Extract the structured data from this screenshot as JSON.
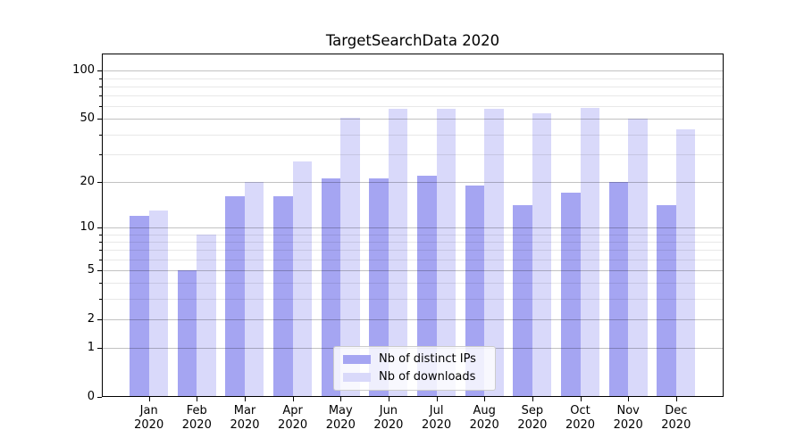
{
  "chart_data": {
    "type": "bar",
    "title": "TargetSearchData 2020",
    "x_months": [
      "Jan",
      "Feb",
      "Mar",
      "Apr",
      "May",
      "Jun",
      "Jul",
      "Aug",
      "Sep",
      "Oct",
      "Nov",
      "Dec"
    ],
    "x_year": "2020",
    "series": [
      {
        "name": "Nb of distinct IPs",
        "color": "#a5a5f2",
        "values": [
          12,
          5,
          16,
          16,
          21,
          21,
          22,
          19,
          14,
          17,
          20,
          14
        ]
      },
      {
        "name": "Nb of downloads",
        "color": "#d9d9fa",
        "values": [
          13,
          9,
          20,
          27,
          51,
          58,
          58,
          58,
          54,
          59,
          50,
          43
        ]
      }
    ],
    "y_scale": "log1p",
    "y_ticks": [
      0,
      1,
      2,
      5,
      10,
      20,
      50,
      100
    ],
    "y_minor_ticks": [
      3,
      4,
      6,
      7,
      8,
      9,
      30,
      40,
      60,
      70,
      80,
      90
    ],
    "y_axis_max": 128,
    "ylim": [
      0,
      128
    ],
    "xlabel": "",
    "ylabel": "",
    "grid": "both, drawn above bars",
    "legend": {
      "position": "lower center",
      "entries": [
        "Nb of distinct IPs",
        "Nb of downloads"
      ]
    }
  }
}
